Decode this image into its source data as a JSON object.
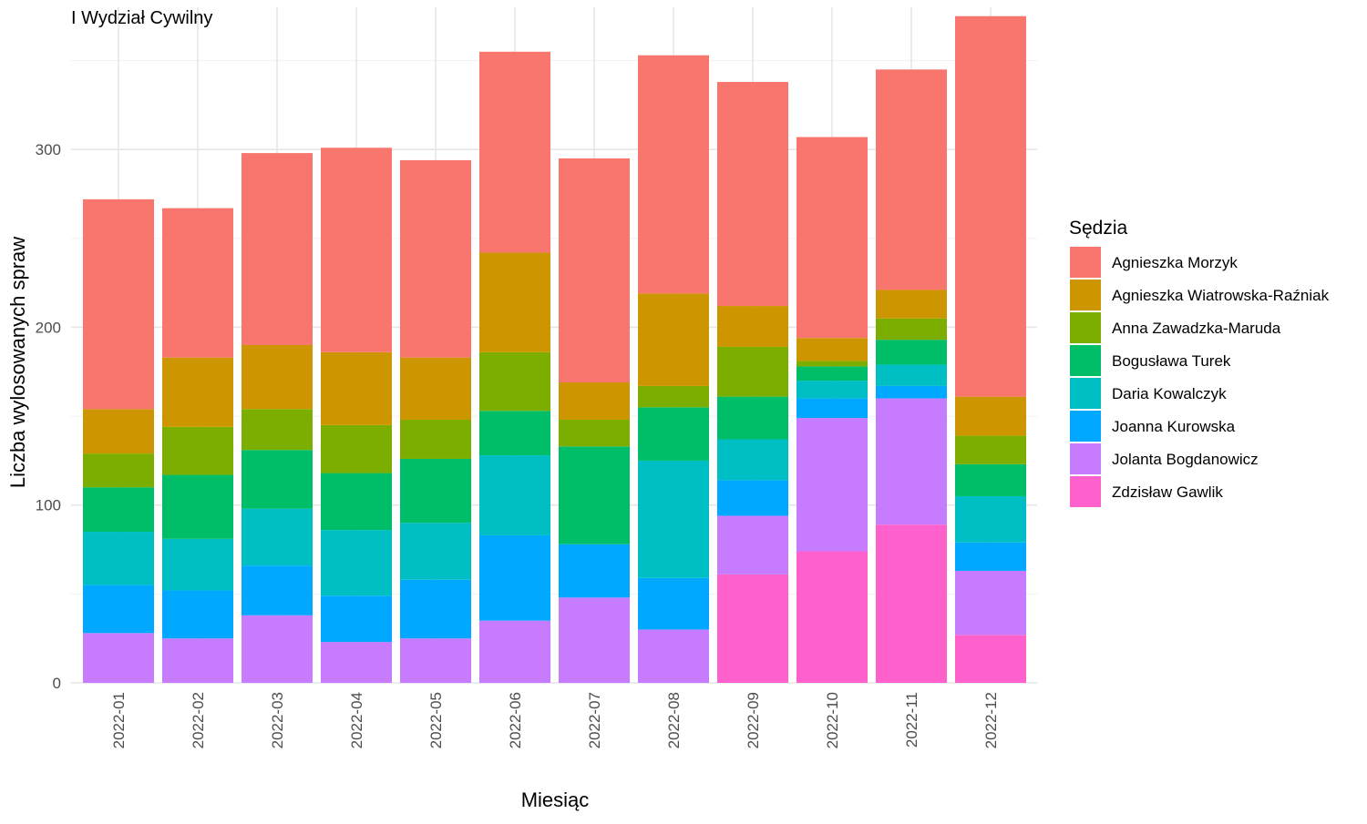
{
  "chart_data": {
    "type": "bar",
    "stacked": true,
    "title": "I Wydział Cywilny",
    "xlabel": "Miesiąc",
    "ylabel": "Liczba wylosowanych spraw",
    "ylim": [
      0,
      380
    ],
    "yticks": [
      0,
      100,
      200,
      300
    ],
    "ytick_labels": [
      "0",
      "100",
      "200",
      "300"
    ],
    "grid": true,
    "legend": {
      "title": "Sędzia",
      "position": "right"
    },
    "categories": [
      "2022-01",
      "2022-02",
      "2022-03",
      "2022-04",
      "2022-05",
      "2022-06",
      "2022-07",
      "2022-08",
      "2022-09",
      "2022-10",
      "2022-11",
      "2022-12"
    ],
    "series": [
      {
        "name": "Zdzisław Gawlik",
        "color": "#FF61CC",
        "values": [
          0,
          0,
          0,
          0,
          0,
          0,
          0,
          0,
          61,
          74,
          89,
          27
        ]
      },
      {
        "name": "Jolanta Bogdanowicz",
        "color": "#C77CFF",
        "values": [
          28,
          25,
          38,
          23,
          25,
          35,
          48,
          30,
          33,
          75,
          71,
          36
        ]
      },
      {
        "name": "Joanna Kurowska",
        "color": "#00A9FF",
        "values": [
          27,
          27,
          28,
          26,
          33,
          48,
          30,
          29,
          20,
          11,
          7,
          16
        ]
      },
      {
        "name": "Daria Kowalczyk",
        "color": "#00BFC4",
        "values": [
          30,
          29,
          32,
          37,
          32,
          45,
          0,
          66,
          23,
          10,
          12,
          26
        ]
      },
      {
        "name": "Bogusława Turek",
        "color": "#00BE67",
        "values": [
          25,
          36,
          33,
          32,
          36,
          25,
          55,
          30,
          24,
          8,
          14,
          18
        ]
      },
      {
        "name": "Anna Zawadzka-Maruda",
        "color": "#7CAE00",
        "values": [
          19,
          27,
          23,
          27,
          22,
          33,
          15,
          12,
          28,
          3,
          12,
          16
        ]
      },
      {
        "name": "Agnieszka Wiatrowska-Raźniak",
        "color": "#CD9600",
        "values": [
          25,
          39,
          36,
          41,
          35,
          56,
          21,
          52,
          23,
          13,
          16,
          22
        ]
      },
      {
        "name": "Agnieszka Morzyk",
        "color": "#F8766D",
        "values": [
          118,
          84,
          108,
          115,
          111,
          113,
          126,
          134,
          126,
          113,
          124,
          214
        ]
      }
    ],
    "legend_order": [
      "Agnieszka Morzyk",
      "Agnieszka Wiatrowska-Raźniak",
      "Anna Zawadzka-Maruda",
      "Bogusława Turek",
      "Daria Kowalczyk",
      "Joanna Kurowska",
      "Jolanta Bogdanowicz",
      "Zdzisław Gawlik"
    ]
  }
}
